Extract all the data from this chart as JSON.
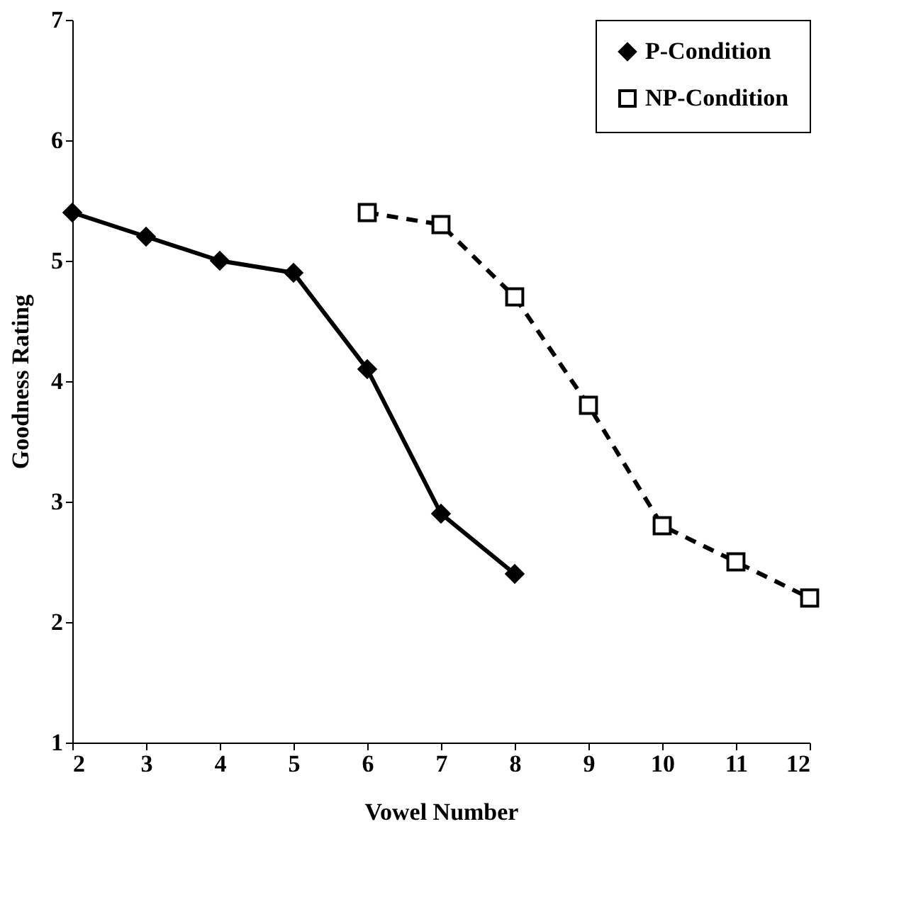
{
  "chart_data": {
    "type": "line",
    "xlabel": "Vowel Number",
    "ylabel": "Goodness Rating",
    "xlim": [
      2,
      12
    ],
    "xticks": [
      2,
      3,
      4,
      5,
      6,
      7,
      8,
      9,
      10,
      11,
      12
    ],
    "ylim": [
      1,
      7
    ],
    "yticks": [
      1,
      2,
      3,
      4,
      5,
      6,
      7
    ],
    "grid": false,
    "legend": "top right",
    "series": [
      {
        "name": "P-Condition",
        "color": "#000000",
        "x": [
          2,
          3,
          4,
          5,
          6,
          7,
          8
        ],
        "values": [
          5.4,
          5.2,
          5.0,
          4.9,
          4.1,
          2.9,
          2.4
        ],
        "marker": "diamond",
        "line_style": "solid"
      },
      {
        "name": "NP-Condition",
        "color": "#000000",
        "x": [
          6,
          7,
          8,
          9,
          10,
          11,
          12
        ],
        "values": [
          5.4,
          5.3,
          4.7,
          3.8,
          2.8,
          2.5,
          2.2
        ],
        "marker": "square",
        "line_style": "dashed"
      }
    ]
  }
}
